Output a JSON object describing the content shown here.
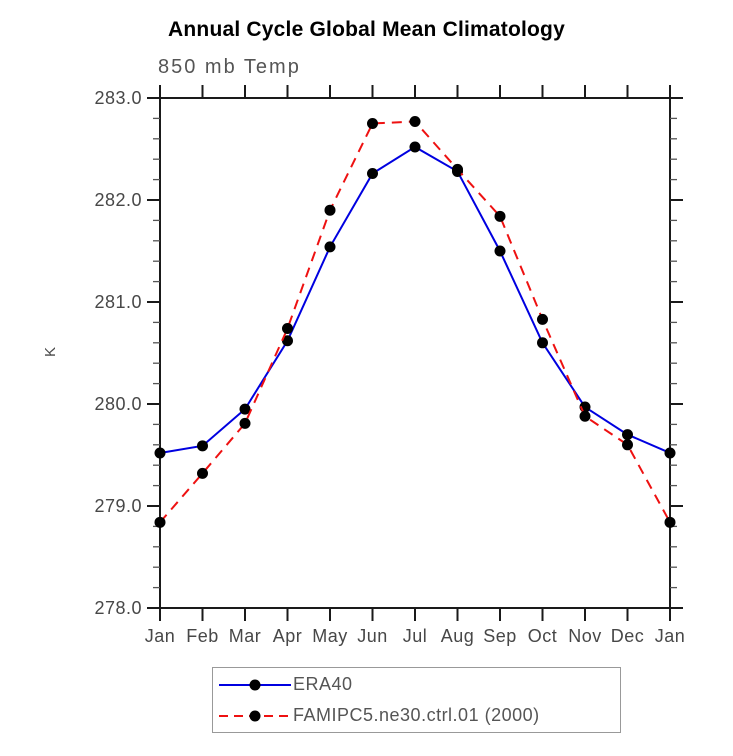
{
  "page": {
    "title": "Annual Cycle Global Mean Climatology",
    "subtitle": "850 mb Temp",
    "y_axis_unit": "K"
  },
  "chart_data": {
    "type": "line",
    "title": "Annual Cycle Global Mean Climatology",
    "subtitle": "850 mb Temp",
    "ylabel": "K",
    "xlabel": "",
    "x_categories": [
      "Jan",
      "Feb",
      "Mar",
      "Apr",
      "May",
      "Jun",
      "Jul",
      "Aug",
      "Sep",
      "Oct",
      "Nov",
      "Dec",
      "Jan"
    ],
    "ylim": [
      278.0,
      283.0
    ],
    "y_major_ticks": [
      278.0,
      279.0,
      280.0,
      281.0,
      282.0,
      283.0
    ],
    "y_tick_labels": [
      "278.0",
      "279.0",
      "280.0",
      "281.0",
      "282.0",
      "283.0"
    ],
    "y_minor_step": 0.2,
    "grid": false,
    "tick_direction": "outward",
    "legend_position": "bottom-center",
    "series": [
      {
        "name": "ERA40",
        "line_color": "#0000e0",
        "line_style": "solid",
        "marker": "filled-circle",
        "marker_color": "#000000",
        "values": [
          279.52,
          279.59,
          279.95,
          280.62,
          281.54,
          282.26,
          282.52,
          282.28,
          281.5,
          280.6,
          279.97,
          279.7,
          279.52
        ]
      },
      {
        "name": "FAMIPC5.ne30.ctrl.01 (2000)",
        "line_color": "#ee1111",
        "line_style": "dashed",
        "marker": "filled-circle",
        "marker_color": "#000000",
        "values": [
          278.84,
          279.32,
          279.81,
          280.74,
          281.9,
          282.75,
          282.77,
          282.3,
          281.84,
          280.83,
          279.88,
          279.6,
          278.84
        ]
      }
    ]
  },
  "colors": {
    "background": "#ffffff",
    "axis": "#1a1a1a",
    "minor_tick": "#555555",
    "tick_label_text": "#474747",
    "subtitle_text": "#555555",
    "legend_text": "#555555",
    "legend_border": "#999999"
  }
}
